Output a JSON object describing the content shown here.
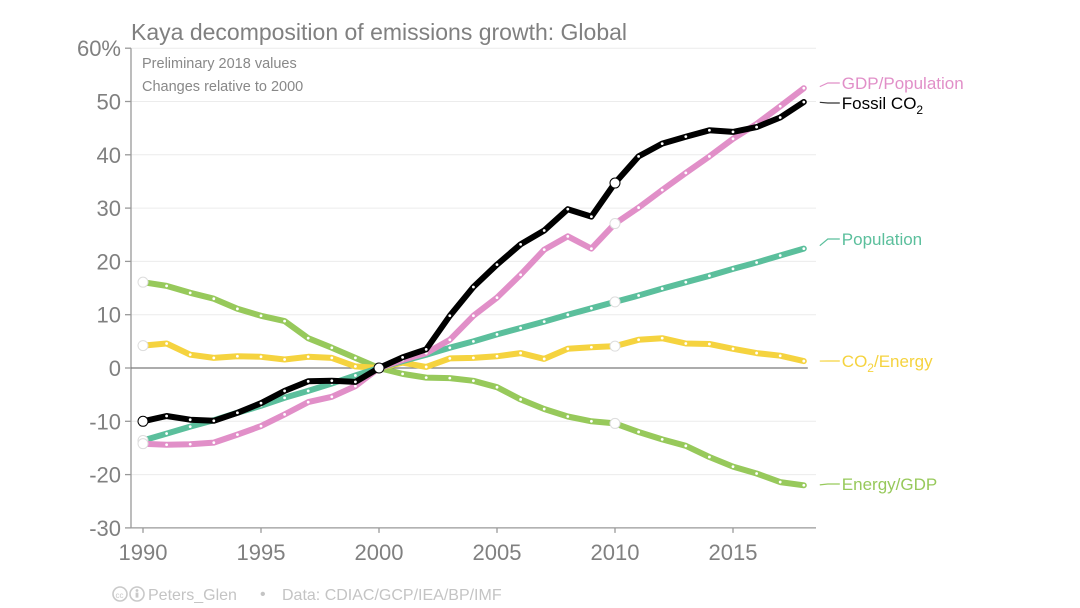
{
  "chart_data": {
    "type": "line",
    "title": "Kaya decomposition of emissions growth: Global",
    "subtitle_lines": [
      "Preliminary 2018 values",
      "Changes relative to 2000"
    ],
    "xlabel": "",
    "ylabel": "",
    "ylim": [
      -30,
      60
    ],
    "xlim": [
      1990,
      2018
    ],
    "grid": true,
    "y_ticks": [
      -30,
      -20,
      -10,
      0,
      10,
      20,
      30,
      40,
      50,
      60
    ],
    "y_tick_labels": [
      "-30",
      "-20",
      "-10",
      "0",
      "10",
      "20",
      "30",
      "40",
      "50",
      "60%"
    ],
    "x_ticks": [
      1990,
      1995,
      2000,
      2005,
      2010,
      2015
    ],
    "x_tick_labels": [
      "1990",
      "1995",
      "2000",
      "2005",
      "2010",
      "2015"
    ],
    "legend_placement": "right (inline labels at line ends)",
    "highlighted_years": [
      1990,
      2000,
      2010
    ],
    "x": [
      1990,
      1991,
      1992,
      1993,
      1994,
      1995,
      1996,
      1997,
      1998,
      1999,
      2000,
      2001,
      2002,
      2003,
      2004,
      2005,
      2006,
      2007,
      2008,
      2009,
      2010,
      2011,
      2012,
      2013,
      2014,
      2015,
      2016,
      2017,
      2018
    ],
    "series": [
      {
        "name": "Energy/GDP",
        "label": "Energy/GDP",
        "color": "#97c95b",
        "values": [
          16.1,
          15.4,
          14.1,
          13.0,
          11.1,
          9.8,
          8.8,
          5.6,
          3.8,
          1.9,
          0,
          -1.1,
          -1.8,
          -1.9,
          -2.4,
          -3.6,
          -5.9,
          -7.7,
          -9.1,
          -10.0,
          -10.4,
          -12.0,
          -13.4,
          -14.6,
          -16.7,
          -18.5,
          -19.8,
          -21.4,
          -22.0
        ]
      },
      {
        "name": "CO2/Energy",
        "label_main": "CO",
        "label_sub": "2",
        "label_rest": "/Energy",
        "color": "#f5d33f",
        "values": [
          4.2,
          4.6,
          2.5,
          1.9,
          2.2,
          2.1,
          1.6,
          2.1,
          1.9,
          0.3,
          0,
          1.0,
          0.2,
          1.8,
          1.9,
          2.2,
          2.8,
          1.7,
          3.6,
          3.9,
          4.1,
          5.3,
          5.6,
          4.6,
          4.5,
          3.6,
          2.8,
          2.3,
          1.3
        ]
      },
      {
        "name": "Population",
        "label": "Population",
        "color": "#5bbf9c",
        "values": [
          -13.6,
          -12.3,
          -11.0,
          -9.8,
          -8.4,
          -7.1,
          -5.6,
          -4.3,
          -2.9,
          -1.4,
          0,
          1.3,
          2.5,
          3.8,
          5.0,
          6.3,
          7.5,
          8.7,
          10.0,
          11.2,
          12.4,
          13.6,
          14.9,
          16.1,
          17.3,
          18.6,
          19.8,
          21.1,
          22.4
        ]
      },
      {
        "name": "GDP/Population",
        "label": "GDP/Population",
        "color": "#e18fc8",
        "values": [
          -14.2,
          -14.4,
          -14.3,
          -14.0,
          -12.5,
          -10.9,
          -8.7,
          -6.4,
          -5.4,
          -3.4,
          0,
          1.5,
          2.8,
          5.3,
          9.8,
          13.2,
          17.5,
          22.2,
          24.7,
          22.4,
          27.1,
          30.1,
          33.4,
          36.6,
          39.7,
          43.0,
          45.8,
          49.1,
          52.5
        ]
      },
      {
        "name": "Fossil CO2",
        "label_main": "Fossil CO",
        "label_sub": "2",
        "label_rest": "",
        "color": "#000000",
        "values": [
          -10.0,
          -9.0,
          -9.7,
          -9.9,
          -8.4,
          -6.6,
          -4.3,
          -2.5,
          -2.4,
          -2.6,
          0,
          2.0,
          3.5,
          9.8,
          15.2,
          19.4,
          23.2,
          25.8,
          29.8,
          28.4,
          34.7,
          39.7,
          42.1,
          43.4,
          44.6,
          44.3,
          45.2,
          47.0,
          49.9
        ]
      }
    ]
  },
  "footer": {
    "license_icons": "cc-by",
    "author": "Peters_Glen",
    "separator": "•",
    "source": "Data: CDIAC/GCP/IEA/BP/IMF"
  }
}
